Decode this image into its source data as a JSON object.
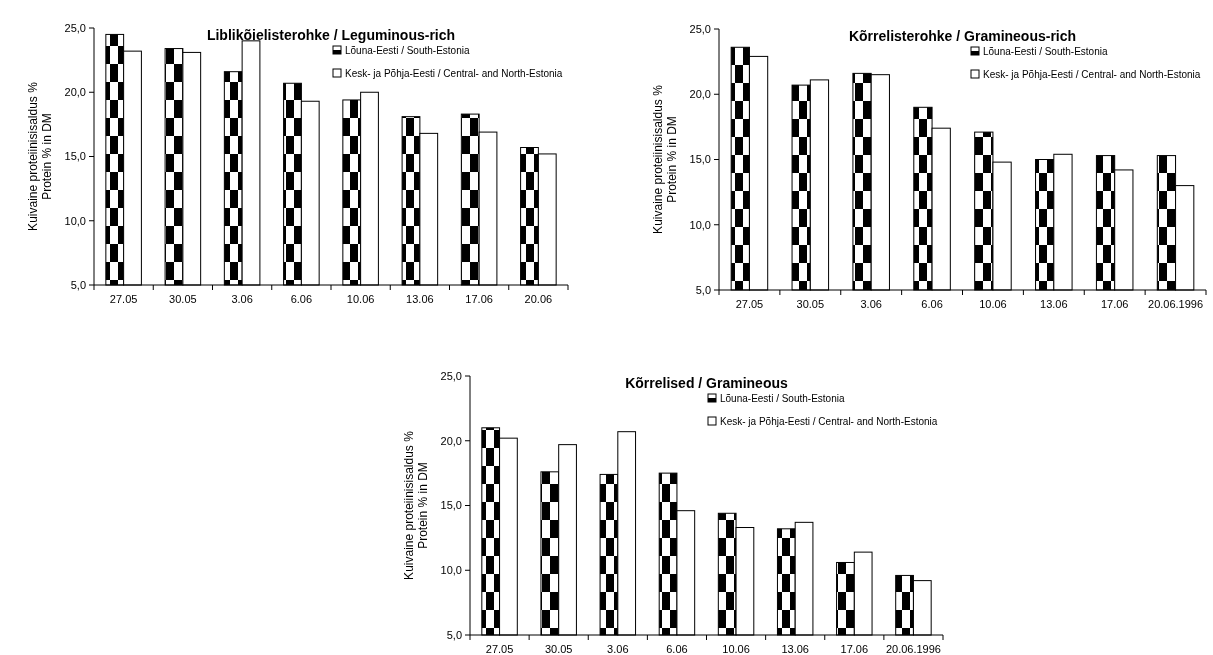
{
  "chart_data": [
    {
      "type": "bar",
      "title": "Liblikõielisterohke / Leguminous-rich",
      "ylabel": "Kuivaine proteiinisisaldus %\nProtein % in DM",
      "categories": [
        "27.05",
        "30.05",
        "3.06",
        "6.06",
        "10.06",
        "13.06",
        "17.06",
        "20.06"
      ],
      "ylim": [
        5,
        25
      ],
      "yticks": [
        {
          "value": 5,
          "label": "5,0"
        },
        {
          "value": 10,
          "label": "10,0"
        },
        {
          "value": 15,
          "label": "15,0"
        },
        {
          "value": 20,
          "label": "20,0"
        },
        {
          "value": 25,
          "label": "25,0"
        }
      ],
      "legend": "top right",
      "grid": false,
      "series": [
        {
          "name": "Lõuna-Eesti / South-Estonia",
          "color": "#000000",
          "values": [
            24.5,
            23.4,
            21.6,
            20.7,
            19.4,
            18.1,
            18.3,
            15.7
          ]
        },
        {
          "name": "Kesk- ja Põhja-Eesti / Central- and North-Estonia",
          "color": "#ffffff",
          "values": [
            23.2,
            23.1,
            24.0,
            19.3,
            20.0,
            16.8,
            16.9,
            15.2
          ]
        }
      ]
    },
    {
      "type": "bar",
      "title": "Kõrrelisterohke / Gramineous-rich",
      "ylabel": "Kuivaine proteiinisisaldus %\nProtein % in DM",
      "categories": [
        "27.05",
        "30.05",
        "3.06",
        "6.06",
        "10.06",
        "13.06",
        "17.06",
        "20.06.1996"
      ],
      "ylim": [
        5,
        25
      ],
      "yticks": [
        {
          "value": 5,
          "label": "5,0"
        },
        {
          "value": 10,
          "label": "10,0"
        },
        {
          "value": 15,
          "label": "15,0"
        },
        {
          "value": 20,
          "label": "20,0"
        },
        {
          "value": 25,
          "label": "25,0"
        }
      ],
      "legend": "top right",
      "grid": false,
      "series": [
        {
          "name": "Lõuna-Eesti / South-Estonia",
          "color": "#000000",
          "values": [
            23.6,
            20.7,
            21.6,
            19.0,
            17.1,
            15.0,
            15.3,
            15.3
          ]
        },
        {
          "name": "Kesk- ja Põhja-Eesti / Central- and North-Estonia",
          "color": "#ffffff",
          "values": [
            22.9,
            21.1,
            21.5,
            17.4,
            14.8,
            15.4,
            14.2,
            13.0
          ]
        }
      ]
    },
    {
      "type": "bar",
      "title": "Kõrrelised / Gramineous",
      "ylabel": "Kuivaine proteiinisisaldus %\nProtein % in DM",
      "categories": [
        "27.05",
        "30.05",
        "3.06",
        "6.06",
        "10.06",
        "13.06",
        "17.06",
        "20.06.1996"
      ],
      "ylim": [
        5,
        25
      ],
      "yticks": [
        {
          "value": 5,
          "label": "5,0"
        },
        {
          "value": 10,
          "label": "10,0"
        },
        {
          "value": 15,
          "label": "15,0"
        },
        {
          "value": 20,
          "label": "20,0"
        },
        {
          "value": 25,
          "label": "25,0"
        }
      ],
      "legend": "top right",
      "grid": false,
      "series": [
        {
          "name": "Lõuna-Eesti / South-Estonia",
          "color": "#000000",
          "values": [
            21.0,
            17.6,
            17.4,
            17.5,
            14.4,
            13.2,
            10.6,
            9.6
          ]
        },
        {
          "name": "Kesk- ja Põhja-Eesti / Central- and North-Estonia",
          "color": "#ffffff",
          "values": [
            20.2,
            19.7,
            20.7,
            14.6,
            13.3,
            13.7,
            11.4,
            9.2
          ]
        }
      ]
    }
  ]
}
